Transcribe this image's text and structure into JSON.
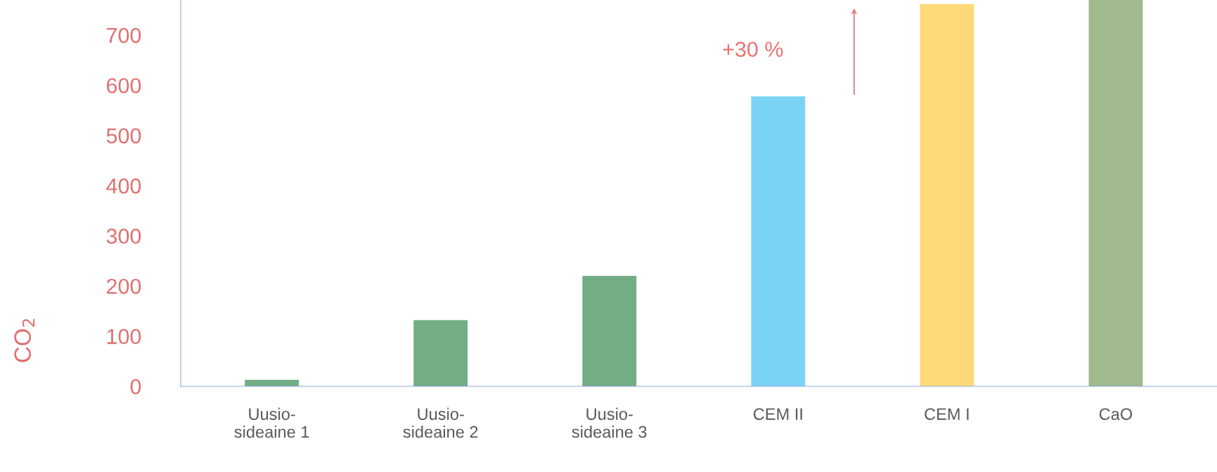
{
  "chart_data": {
    "type": "bar",
    "ylabel": "CO$_{2}$",
    "categories": [
      "Uusio-\nsideaine 1",
      "Uusio-\nsideaine 2",
      "Uusio-\nsideaine 3",
      "CEM II",
      "CEM I",
      "CaO"
    ],
    "values": [
      13,
      132,
      220,
      578,
      762,
      770
    ],
    "colors": [
      "#72ad85",
      "#72ad85",
      "#72ad85",
      "#7ad3f5",
      "#fdd978",
      "#a0b98d"
    ],
    "ylim": [
      0,
      770
    ],
    "yticks": [
      0,
      100,
      200,
      300,
      400,
      500,
      600,
      700
    ],
    "annotations": [
      {
        "text": "+30 %",
        "x": "CEM II",
        "y": 578
      }
    ],
    "grid": false,
    "legend": false
  }
}
